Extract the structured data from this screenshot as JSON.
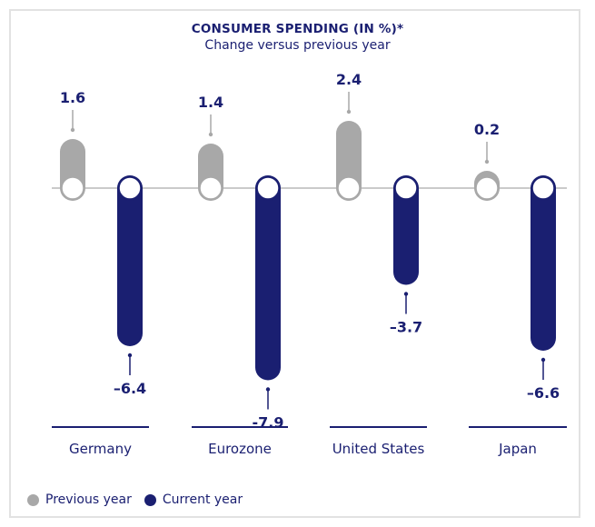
{
  "colors": {
    "previous": "#a8a8a8",
    "current": "#1a1f71",
    "axis": "#b8b8b8",
    "text": "#1a1f71",
    "frame": "#e2e2e2"
  },
  "chart_data": {
    "type": "bar",
    "title": "CONSUMER SPENDING (IN %)*",
    "subtitle": "Change versus previous year",
    "categories": [
      "Germany",
      "Eurozone",
      "United States",
      "Japan"
    ],
    "series": [
      {
        "name": "Previous year",
        "values": [
          1.6,
          1.4,
          2.4,
          0.2
        ],
        "labels": [
          "1.6",
          "1.4",
          "2.4",
          "0.2"
        ]
      },
      {
        "name": "Current year",
        "values": [
          -6.4,
          -7.9,
          -3.7,
          -6.6
        ],
        "labels": [
          "–6.4",
          "-7.9",
          "–3.7",
          "–6.6"
        ]
      }
    ],
    "baseline": 0,
    "legend_position": "bottom-left"
  }
}
